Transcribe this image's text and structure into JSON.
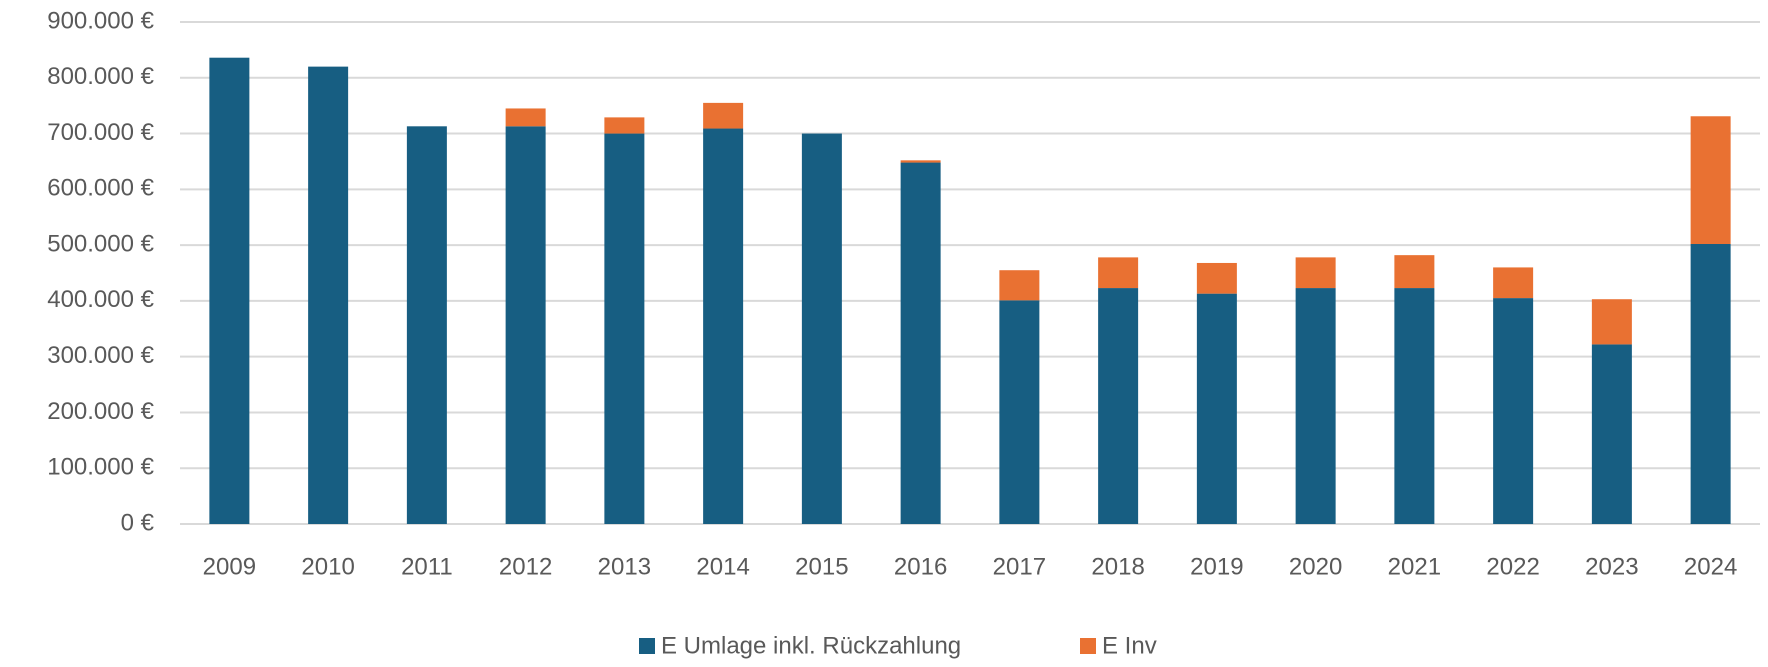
{
  "chart_data": {
    "type": "stacked_bar",
    "categories": [
      "2009",
      "2010",
      "2011",
      "2012",
      "2013",
      "2014",
      "2015",
      "2016",
      "2017",
      "2018",
      "2019",
      "2020",
      "2021",
      "2022",
      "2023",
      "2024"
    ],
    "series": [
      {
        "name": "E Umlage inkl. Rückzahlung",
        "color": "#175e82",
        "values": [
          836000,
          820000,
          713000,
          713000,
          700000,
          709000,
          700000,
          648000,
          401000,
          423000,
          413000,
          423000,
          423000,
          405000,
          322000,
          502000
        ]
      },
      {
        "name": "E Inv",
        "color": "#e97132",
        "values": [
          0,
          0,
          0,
          32000,
          29000,
          46000,
          0,
          4000,
          54000,
          55000,
          55000,
          55000,
          59000,
          55000,
          81000,
          229000
        ]
      }
    ],
    "ylim": [
      0,
      900000
    ],
    "yticks": [
      {
        "value": 0,
        "label": "0 €"
      },
      {
        "value": 100000,
        "label": "100.000 €"
      },
      {
        "value": 200000,
        "label": "200.000 €"
      },
      {
        "value": 300000,
        "label": "300.000 €"
      },
      {
        "value": 400000,
        "label": "400.000 €"
      },
      {
        "value": 500000,
        "label": "500.000 €"
      },
      {
        "value": 600000,
        "label": "600.000 €"
      },
      {
        "value": 700000,
        "label": "700.000 €"
      },
      {
        "value": 800000,
        "label": "800.000 €"
      },
      {
        "value": 900000,
        "label": "900.000 €"
      }
    ],
    "grid": true,
    "legend": "bottom"
  }
}
